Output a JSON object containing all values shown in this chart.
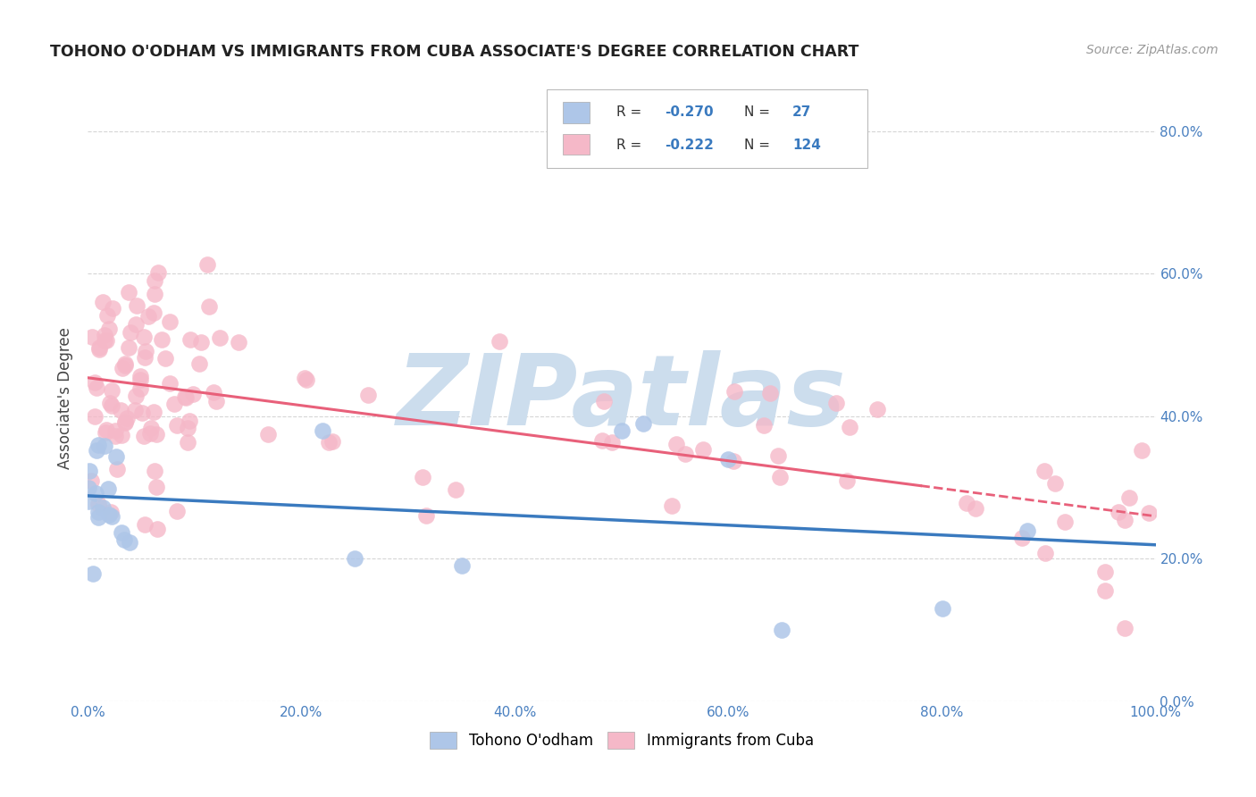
{
  "title": "TOHONO O'ODHAM VS IMMIGRANTS FROM CUBA ASSOCIATE'S DEGREE CORRELATION CHART",
  "source": "Source: ZipAtlas.com",
  "ylabel": "Associate's Degree",
  "xlim": [
    0.0,
    1.0
  ],
  "ylim": [
    0.0,
    0.85
  ],
  "xtick_vals": [
    0.0,
    0.2,
    0.4,
    0.6,
    0.8,
    1.0
  ],
  "ytick_vals": [
    0.0,
    0.2,
    0.4,
    0.6,
    0.8
  ],
  "xticklabels": [
    "0.0%",
    "20.0%",
    "40.0%",
    "60.0%",
    "80.0%",
    "100.0%"
  ],
  "yticklabels_right": [
    "0.0%",
    "20.0%",
    "40.0%",
    "60.0%",
    "80.0%"
  ],
  "legend1_R": "-0.270",
  "legend1_N": "27",
  "legend2_R": "-0.222",
  "legend2_N": "124",
  "blue_color": "#aec6e8",
  "pink_color": "#f5b8c8",
  "blue_line_color": "#3a7abf",
  "pink_line_color": "#e8607a",
  "watermark": "ZIPatlas",
  "watermark_color": "#ccdded",
  "background_color": "#ffffff",
  "grid_color": "#cccccc",
  "title_color": "#222222",
  "ylabel_color": "#444444",
  "tick_color": "#4a80c0",
  "legend_R_color": "#3a7abf",
  "legend_text_color": "#333333"
}
